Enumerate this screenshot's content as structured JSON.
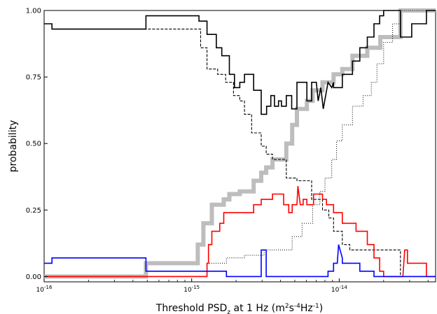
{
  "chart_data": {
    "type": "line",
    "ylabel": "probability",
    "xlabel_parts": [
      "Threshold PSD",
      "z",
      " at 1 Hz (m",
      "2",
      "s",
      "-4",
      "Hz",
      "-1",
      ")"
    ],
    "x_scale": "log",
    "xlim": [
      1e-16,
      4.5e-14
    ],
    "ylim": [
      -0.02,
      1.0
    ],
    "x_ticks": [
      {
        "value": 1e-16,
        "base": "10",
        "exp": "-16"
      },
      {
        "value": 1e-15,
        "base": "10",
        "exp": "-15"
      },
      {
        "value": 1e-14,
        "base": "10",
        "exp": "-14"
      }
    ],
    "y_ticks": [
      {
        "value": 0.0,
        "label": "0.00"
      },
      {
        "value": 0.25,
        "label": "0.25"
      },
      {
        "value": 0.5,
        "label": "0.50"
      },
      {
        "value": 0.75,
        "label": "0.75"
      },
      {
        "value": 1.0,
        "label": "1.00"
      }
    ],
    "series": [
      {
        "style": "gray-thick",
        "color": "#bdbdbd",
        "points": [
          [
            1e-16,
            0.0
          ],
          [
            4.9e-16,
            0.0
          ],
          [
            4.9e-16,
            0.05
          ],
          [
            1.1e-15,
            0.05
          ],
          [
            1.1e-15,
            0.12
          ],
          [
            1.2e-15,
            0.12
          ],
          [
            1.2e-15,
            0.2
          ],
          [
            1.37e-15,
            0.2
          ],
          [
            1.37e-15,
            0.27
          ],
          [
            1.65e-15,
            0.27
          ],
          [
            1.65e-15,
            0.29
          ],
          [
            1.8e-15,
            0.29
          ],
          [
            1.8e-15,
            0.31
          ],
          [
            2.12e-15,
            0.31
          ],
          [
            2.12e-15,
            0.32
          ],
          [
            2.63e-15,
            0.32
          ],
          [
            2.63e-15,
            0.36
          ],
          [
            2.96e-15,
            0.36
          ],
          [
            2.96e-15,
            0.39
          ],
          [
            3.2e-15,
            0.39
          ],
          [
            3.2e-15,
            0.41
          ],
          [
            3.53e-15,
            0.41
          ],
          [
            3.53e-15,
            0.44
          ],
          [
            4.38e-15,
            0.44
          ],
          [
            4.38e-15,
            0.5
          ],
          [
            4.8e-15,
            0.5
          ],
          [
            4.8e-15,
            0.57
          ],
          [
            5.17e-15,
            0.57
          ],
          [
            5.17e-15,
            0.63
          ],
          [
            6.04e-15,
            0.63
          ],
          [
            6.04e-15,
            0.66
          ],
          [
            6.6e-15,
            0.66
          ],
          [
            6.6e-15,
            0.7
          ],
          [
            7.7e-15,
            0.7
          ],
          [
            7.7e-15,
            0.73
          ],
          [
            9.16e-15,
            0.73
          ],
          [
            9.16e-15,
            0.76
          ],
          [
            1.05e-14,
            0.76
          ],
          [
            1.05e-14,
            0.78
          ],
          [
            1.23e-14,
            0.78
          ],
          [
            1.23e-14,
            0.83
          ],
          [
            1.55e-14,
            0.83
          ],
          [
            1.55e-14,
            0.86
          ],
          [
            1.9e-14,
            0.86
          ],
          [
            1.9e-14,
            0.9
          ],
          [
            2.6e-14,
            0.9
          ],
          [
            2.6e-14,
            1.0
          ],
          [
            4.5e-14,
            1.0
          ]
        ]
      },
      {
        "style": "black-solid",
        "color": "#000000",
        "points": [
          [
            1e-16,
            0.95
          ],
          [
            1.13e-16,
            0.95
          ],
          [
            1.13e-16,
            0.93
          ],
          [
            4.9e-16,
            0.93
          ],
          [
            4.9e-16,
            0.98
          ],
          [
            1.12e-15,
            0.98
          ],
          [
            1.12e-15,
            0.96
          ],
          [
            1.27e-15,
            0.96
          ],
          [
            1.27e-15,
            0.91
          ],
          [
            1.47e-15,
            0.91
          ],
          [
            1.47e-15,
            0.86
          ],
          [
            1.6e-15,
            0.86
          ],
          [
            1.6e-15,
            0.83
          ],
          [
            1.8e-15,
            0.83
          ],
          [
            1.8e-15,
            0.76
          ],
          [
            1.95e-15,
            0.76
          ],
          [
            1.95e-15,
            0.71
          ],
          [
            2.12e-15,
            0.71
          ],
          [
            2.12e-15,
            0.73
          ],
          [
            2.28e-15,
            0.73
          ],
          [
            2.28e-15,
            0.76
          ],
          [
            2.63e-15,
            0.76
          ],
          [
            2.63e-15,
            0.7
          ],
          [
            2.96e-15,
            0.7
          ],
          [
            2.96e-15,
            0.61
          ],
          [
            3.22e-15,
            0.61
          ],
          [
            3.22e-15,
            0.64
          ],
          [
            3.44e-15,
            0.64
          ],
          [
            3.44e-15,
            0.68
          ],
          [
            3.64e-15,
            0.68
          ],
          [
            3.64e-15,
            0.64
          ],
          [
            3.88e-15,
            0.64
          ],
          [
            3.88e-15,
            0.66
          ],
          [
            4.06e-15,
            0.66
          ],
          [
            4.06e-15,
            0.64
          ],
          [
            4.38e-15,
            0.64
          ],
          [
            4.38e-15,
            0.68
          ],
          [
            4.76e-15,
            0.68
          ],
          [
            4.76e-15,
            0.63
          ],
          [
            5.17e-15,
            0.63
          ],
          [
            5.17e-15,
            0.73
          ],
          [
            6.04e-15,
            0.73
          ],
          [
            6.04e-15,
            0.66
          ],
          [
            6.5e-15,
            0.66
          ],
          [
            6.5e-15,
            0.73
          ],
          [
            7e-15,
            0.73
          ],
          [
            7.2e-15,
            0.66
          ],
          [
            7.5e-15,
            0.71
          ],
          [
            7.8e-15,
            0.63
          ],
          [
            8.4e-15,
            0.73
          ],
          [
            8.9e-15,
            0.71
          ],
          [
            9.16e-15,
            0.73
          ],
          [
            9.16e-15,
            0.71
          ],
          [
            1.05e-14,
            0.71
          ],
          [
            1.05e-14,
            0.76
          ],
          [
            1.23e-14,
            0.76
          ],
          [
            1.23e-14,
            0.81
          ],
          [
            1.38e-14,
            0.81
          ],
          [
            1.38e-14,
            0.86
          ],
          [
            1.55e-14,
            0.86
          ],
          [
            1.55e-14,
            0.9
          ],
          [
            1.72e-14,
            0.9
          ],
          [
            1.72e-14,
            0.95
          ],
          [
            1.88e-14,
            0.95
          ],
          [
            1.88e-14,
            0.98
          ],
          [
            2e-14,
            0.98
          ],
          [
            2e-14,
            1.0
          ],
          [
            2.6e-14,
            1.0
          ],
          [
            2.6e-14,
            0.9
          ],
          [
            3.1e-14,
            0.9
          ],
          [
            3.1e-14,
            0.95
          ],
          [
            3.9e-14,
            0.95
          ],
          [
            3.9e-14,
            1.0
          ],
          [
            4.5e-14,
            1.0
          ]
        ]
      },
      {
        "style": "black-dashed",
        "color": "#000000",
        "points": [
          [
            1e-16,
            0.95
          ],
          [
            1.13e-16,
            0.95
          ],
          [
            1.13e-16,
            0.93
          ],
          [
            1.15e-15,
            0.93
          ],
          [
            1.15e-15,
            0.86
          ],
          [
            1.27e-15,
            0.86
          ],
          [
            1.27e-15,
            0.78
          ],
          [
            1.5e-15,
            0.78
          ],
          [
            1.5e-15,
            0.76
          ],
          [
            1.7e-15,
            0.76
          ],
          [
            1.7e-15,
            0.73
          ],
          [
            1.92e-15,
            0.73
          ],
          [
            1.92e-15,
            0.68
          ],
          [
            2.12e-15,
            0.68
          ],
          [
            2.12e-15,
            0.66
          ],
          [
            2.28e-15,
            0.66
          ],
          [
            2.28e-15,
            0.61
          ],
          [
            2.55e-15,
            0.61
          ],
          [
            2.55e-15,
            0.54
          ],
          [
            2.96e-15,
            0.54
          ],
          [
            2.96e-15,
            0.49
          ],
          [
            3.2e-15,
            0.49
          ],
          [
            3.2e-15,
            0.46
          ],
          [
            3.53e-15,
            0.46
          ],
          [
            3.53e-15,
            0.44
          ],
          [
            4.38e-15,
            0.44
          ],
          [
            4.38e-15,
            0.37
          ],
          [
            5.17e-15,
            0.37
          ],
          [
            5.17e-15,
            0.36
          ],
          [
            6.5e-15,
            0.36
          ],
          [
            6.5e-15,
            0.29
          ],
          [
            7.7e-15,
            0.29
          ],
          [
            7.7e-15,
            0.25
          ],
          [
            8.5e-15,
            0.25
          ],
          [
            8.5e-15,
            0.22
          ],
          [
            9.16e-15,
            0.22
          ],
          [
            9.16e-15,
            0.17
          ],
          [
            1.05e-14,
            0.17
          ],
          [
            1.05e-14,
            0.12
          ],
          [
            1.18e-14,
            0.12
          ],
          [
            1.18e-14,
            0.1
          ],
          [
            2.6e-14,
            0.1
          ],
          [
            2.6e-14,
            0.0
          ],
          [
            4.5e-14,
            0.0
          ]
        ]
      },
      {
        "style": "black-dotted",
        "color": "#000000",
        "points": [
          [
            1e-16,
            0.0
          ],
          [
            1.27e-15,
            0.0
          ],
          [
            1.27e-15,
            0.05
          ],
          [
            1.72e-15,
            0.05
          ],
          [
            1.72e-15,
            0.07
          ],
          [
            2.28e-15,
            0.07
          ],
          [
            2.28e-15,
            0.08
          ],
          [
            3.1e-15,
            0.08
          ],
          [
            3.1e-15,
            0.1
          ],
          [
            4.8e-15,
            0.1
          ],
          [
            4.8e-15,
            0.15
          ],
          [
            5.6e-15,
            0.15
          ],
          [
            5.6e-15,
            0.2
          ],
          [
            6.6e-15,
            0.2
          ],
          [
            6.6e-15,
            0.27
          ],
          [
            7.4e-15,
            0.27
          ],
          [
            7.4e-15,
            0.32
          ],
          [
            8e-15,
            0.32
          ],
          [
            8e-15,
            0.37
          ],
          [
            8.9e-15,
            0.37
          ],
          [
            8.9e-15,
            0.44
          ],
          [
            9.6e-15,
            0.44
          ],
          [
            9.6e-15,
            0.51
          ],
          [
            1.05e-14,
            0.51
          ],
          [
            1.05e-14,
            0.57
          ],
          [
            1.23e-14,
            0.57
          ],
          [
            1.23e-14,
            0.64
          ],
          [
            1.45e-14,
            0.64
          ],
          [
            1.45e-14,
            0.68
          ],
          [
            1.65e-14,
            0.68
          ],
          [
            1.65e-14,
            0.73
          ],
          [
            1.8e-14,
            0.73
          ],
          [
            1.8e-14,
            0.8
          ],
          [
            2e-14,
            0.8
          ],
          [
            2e-14,
            0.88
          ],
          [
            2.3e-14,
            0.88
          ],
          [
            2.3e-14,
            0.95
          ],
          [
            2.6e-14,
            0.95
          ],
          [
            2.6e-14,
            1.0
          ],
          [
            4.5e-14,
            1.0
          ]
        ]
      },
      {
        "style": "red-solid",
        "color": "#ff0000",
        "points": [
          [
            1e-16,
            0.0
          ],
          [
            1.27e-15,
            0.0
          ],
          [
            1.27e-15,
            0.05
          ],
          [
            1.3e-15,
            0.05
          ],
          [
            1.3e-15,
            0.12
          ],
          [
            1.37e-15,
            0.12
          ],
          [
            1.37e-15,
            0.17
          ],
          [
            1.55e-15,
            0.17
          ],
          [
            1.55e-15,
            0.2
          ],
          [
            1.65e-15,
            0.2
          ],
          [
            1.65e-15,
            0.24
          ],
          [
            2.63e-15,
            0.24
          ],
          [
            2.63e-15,
            0.27
          ],
          [
            2.96e-15,
            0.27
          ],
          [
            2.96e-15,
            0.29
          ],
          [
            3.53e-15,
            0.29
          ],
          [
            3.53e-15,
            0.31
          ],
          [
            4.2e-15,
            0.31
          ],
          [
            4.2e-15,
            0.27
          ],
          [
            4.55e-15,
            0.27
          ],
          [
            4.55e-15,
            0.24
          ],
          [
            4.8e-15,
            0.24
          ],
          [
            4.8e-15,
            0.27
          ],
          [
            5.17e-15,
            0.27
          ],
          [
            5.25e-15,
            0.34
          ],
          [
            5.45e-15,
            0.27
          ],
          [
            5.7e-15,
            0.27
          ],
          [
            5.7e-15,
            0.29
          ],
          [
            6.04e-15,
            0.29
          ],
          [
            6.04e-15,
            0.27
          ],
          [
            6.7e-15,
            0.27
          ],
          [
            6.7e-15,
            0.31
          ],
          [
            7.7e-15,
            0.31
          ],
          [
            7.7e-15,
            0.29
          ],
          [
            8.2e-15,
            0.29
          ],
          [
            8.2e-15,
            0.27
          ],
          [
            9.16e-15,
            0.27
          ],
          [
            9.16e-15,
            0.24
          ],
          [
            1.05e-14,
            0.24
          ],
          [
            1.05e-14,
            0.2
          ],
          [
            1.3e-14,
            0.2
          ],
          [
            1.3e-14,
            0.17
          ],
          [
            1.55e-14,
            0.17
          ],
          [
            1.55e-14,
            0.12
          ],
          [
            1.72e-14,
            0.12
          ],
          [
            1.72e-14,
            0.07
          ],
          [
            1.88e-14,
            0.07
          ],
          [
            1.88e-14,
            0.02
          ],
          [
            2e-14,
            0.02
          ],
          [
            2e-14,
            0.0
          ],
          [
            2.7e-14,
            0.0
          ],
          [
            2.78e-14,
            0.1
          ],
          [
            2.9e-14,
            0.1
          ],
          [
            2.9e-14,
            0.05
          ],
          [
            3.05e-14,
            0.05
          ],
          [
            3.05e-14,
            0.05
          ],
          [
            3.9e-14,
            0.05
          ],
          [
            3.9e-14,
            0.0
          ],
          [
            4.5e-14,
            0.0
          ]
        ]
      },
      {
        "style": "blue-solid",
        "color": "#0000ff",
        "points": [
          [
            1e-16,
            0.05
          ],
          [
            1.13e-16,
            0.05
          ],
          [
            1.13e-16,
            0.07
          ],
          [
            4.9e-16,
            0.07
          ],
          [
            4.9e-16,
            0.02
          ],
          [
            1.72e-15,
            0.02
          ],
          [
            1.72e-15,
            0.0
          ],
          [
            2.96e-15,
            0.0
          ],
          [
            2.96e-15,
            0.1
          ],
          [
            3.2e-15,
            0.1
          ],
          [
            3.2e-15,
            0.0
          ],
          [
            8.4e-15,
            0.0
          ],
          [
            8.4e-15,
            0.02
          ],
          [
            9.16e-15,
            0.02
          ],
          [
            9.16e-15,
            0.05
          ],
          [
            9.7e-15,
            0.05
          ],
          [
            9.9e-15,
            0.12
          ],
          [
            1.05e-14,
            0.07
          ],
          [
            1.05e-14,
            0.05
          ],
          [
            1.38e-14,
            0.05
          ],
          [
            1.38e-14,
            0.02
          ],
          [
            1.72e-14,
            0.02
          ],
          [
            1.72e-14,
            0.0
          ],
          [
            4.5e-14,
            0.0
          ]
        ]
      }
    ]
  }
}
